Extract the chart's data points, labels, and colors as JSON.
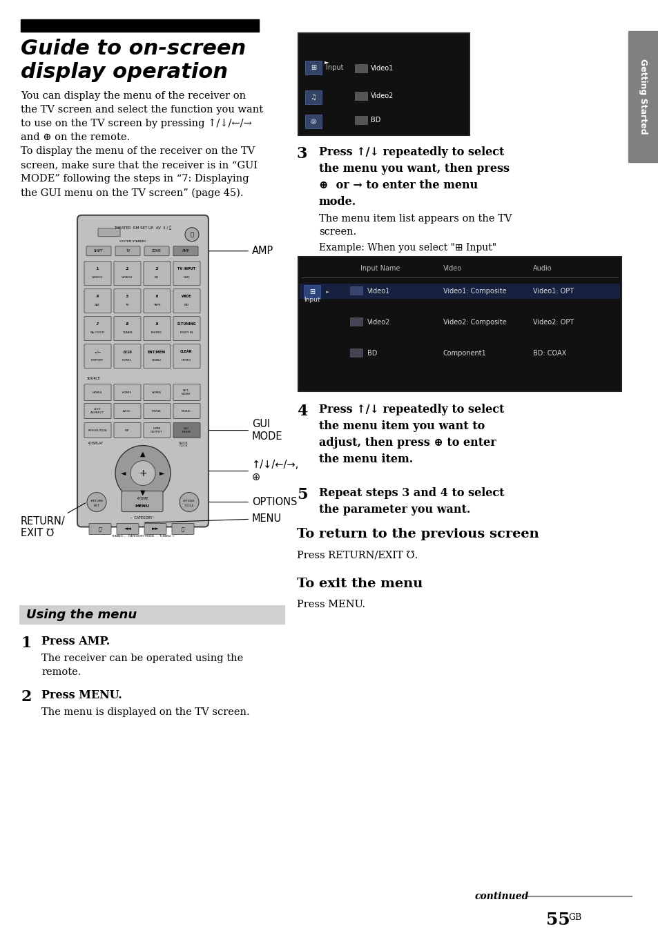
{
  "bg_color": "#ffffff",
  "title_bar_color": "#000000",
  "title_fontsize": 22,
  "body_fontsize": 10.5,
  "section_bg": "#d0d0d0",
  "section_title": "Using the menu",
  "right_tab_color": "#808080",
  "right_tab_text": "Getting Started",
  "page_number": "55",
  "page_suffix": "GB",
  "continued_text": "continued"
}
